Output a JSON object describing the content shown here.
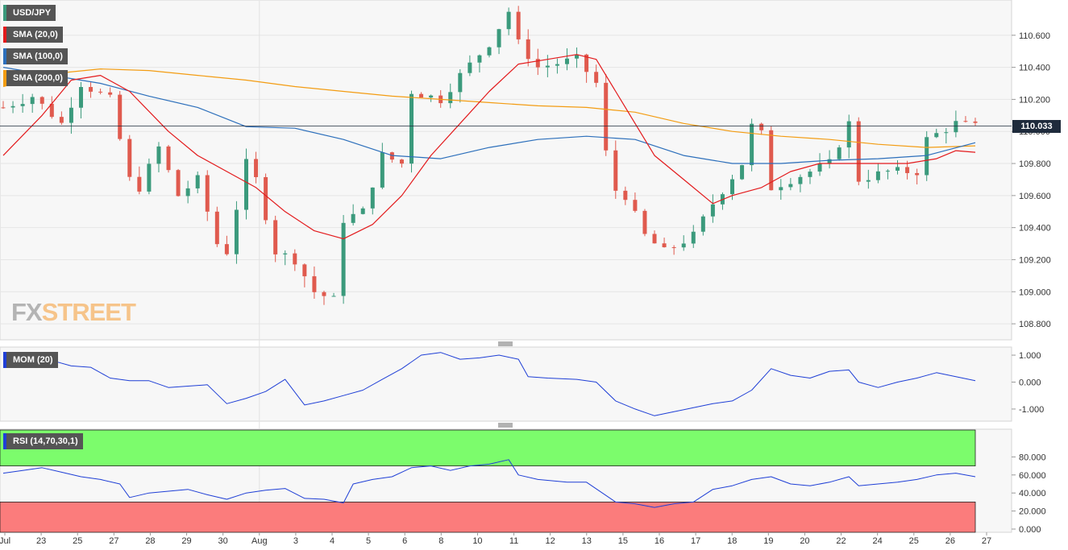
{
  "labels": {
    "symbol": "USD/JPY",
    "sma20": "SMA (20,0)",
    "sma100": "SMA (100,0)",
    "sma200": "SMA (200,0)",
    "mom": "MOM (20)",
    "rsi": "RSI (14,70,30,1)"
  },
  "watermark": {
    "fx": "FX",
    "street": "STREET"
  },
  "colors": {
    "up": "#3b9a7c",
    "down": "#e05a4e",
    "sma20": "#e31a1c",
    "sma100": "#2c6fbb",
    "sma200": "#f39c12",
    "mom": "#1f3fd6",
    "rsi": "#1f3fd6",
    "overbought": "#7cfc6c",
    "oversold": "#fb7c7c",
    "label_bg": "#555555"
  },
  "chart_data": {
    "type": "candlestick",
    "symbol": "USD/JPY",
    "timeframe": "hourly",
    "last_price": "110.033",
    "price_axis": {
      "ticks": [
        "108.800",
        "109.000",
        "109.200",
        "109.400",
        "109.600",
        "109.800",
        "110.000",
        "110.200",
        "110.400",
        "110.600"
      ],
      "range": [
        108.7,
        110.82
      ]
    },
    "date_ticks": [
      "Jul",
      "23",
      "25",
      "27",
      "28",
      "29",
      "30",
      "Aug",
      "3",
      "4",
      "5",
      "6",
      "8",
      "10",
      "11",
      "12",
      "13",
      "15",
      "16",
      "17",
      "18",
      "19",
      "20",
      "22",
      "24",
      "25",
      "26",
      "27"
    ],
    "price_path": [
      [
        0,
        110.15
      ],
      [
        6,
        110.22
      ],
      [
        12,
        110.05
      ],
      [
        16,
        110.3
      ],
      [
        22,
        110.2
      ],
      [
        26,
        109.7
      ],
      [
        28,
        109.65
      ],
      [
        32,
        109.9
      ],
      [
        36,
        109.6
      ],
      [
        40,
        109.7
      ],
      [
        44,
        109.3
      ],
      [
        46,
        109.25
      ],
      [
        50,
        109.8
      ],
      [
        52,
        109.7
      ],
      [
        56,
        109.25
      ],
      [
        60,
        109.2
      ],
      [
        64,
        109.0
      ],
      [
        68,
        108.95
      ],
      [
        70,
        109.45
      ],
      [
        74,
        109.5
      ],
      [
        78,
        109.85
      ],
      [
        82,
        109.8
      ],
      [
        84,
        110.25
      ],
      [
        90,
        110.2
      ],
      [
        94,
        110.35
      ],
      [
        100,
        110.55
      ],
      [
        104,
        110.75
      ],
      [
        106,
        110.55
      ],
      [
        110,
        110.4
      ],
      [
        118,
        110.45
      ],
      [
        122,
        110.3
      ],
      [
        125,
        109.65
      ],
      [
        128,
        109.6
      ],
      [
        132,
        109.35
      ],
      [
        136,
        109.25
      ],
      [
        142,
        109.35
      ],
      [
        146,
        109.55
      ],
      [
        152,
        109.8
      ],
      [
        155,
        110.15
      ],
      [
        158,
        109.65
      ],
      [
        162,
        109.7
      ],
      [
        170,
        109.8
      ],
      [
        174,
        110.05
      ],
      [
        176,
        109.7
      ],
      [
        182,
        109.75
      ],
      [
        188,
        109.75
      ],
      [
        190,
        109.95
      ],
      [
        196,
        110.05
      ],
      [
        200,
        110.03
      ]
    ],
    "sma20_path": [
      [
        0,
        109.85
      ],
      [
        8,
        110.1
      ],
      [
        14,
        110.32
      ],
      [
        20,
        110.35
      ],
      [
        26,
        110.25
      ],
      [
        34,
        110.0
      ],
      [
        40,
        109.85
      ],
      [
        46,
        109.75
      ],
      [
        52,
        109.65
      ],
      [
        58,
        109.5
      ],
      [
        64,
        109.38
      ],
      [
        70,
        109.33
      ],
      [
        76,
        109.42
      ],
      [
        82,
        109.6
      ],
      [
        88,
        109.85
      ],
      [
        94,
        110.05
      ],
      [
        100,
        110.25
      ],
      [
        106,
        110.42
      ],
      [
        112,
        110.45
      ],
      [
        118,
        110.48
      ],
      [
        122,
        110.45
      ],
      [
        126,
        110.25
      ],
      [
        130,
        110.05
      ],
      [
        134,
        109.85
      ],
      [
        140,
        109.7
      ],
      [
        146,
        109.55
      ],
      [
        150,
        109.6
      ],
      [
        156,
        109.65
      ],
      [
        162,
        109.75
      ],
      [
        168,
        109.8
      ],
      [
        174,
        109.8
      ],
      [
        180,
        109.8
      ],
      [
        186,
        109.8
      ],
      [
        192,
        109.83
      ],
      [
        196,
        109.88
      ],
      [
        200,
        109.87
      ]
    ],
    "sma100_path": [
      [
        0,
        110.4
      ],
      [
        10,
        110.35
      ],
      [
        20,
        110.3
      ],
      [
        30,
        110.22
      ],
      [
        40,
        110.15
      ],
      [
        50,
        110.03
      ],
      [
        60,
        110.02
      ],
      [
        70,
        109.95
      ],
      [
        80,
        109.85
      ],
      [
        90,
        109.83
      ],
      [
        100,
        109.9
      ],
      [
        110,
        109.95
      ],
      [
        120,
        109.97
      ],
      [
        130,
        109.95
      ],
      [
        140,
        109.85
      ],
      [
        150,
        109.8
      ],
      [
        160,
        109.8
      ],
      [
        170,
        109.82
      ],
      [
        180,
        109.83
      ],
      [
        190,
        109.85
      ],
      [
        200,
        109.93
      ]
    ],
    "sma200_path": [
      [
        0,
        110.28
      ],
      [
        10,
        110.36
      ],
      [
        20,
        110.39
      ],
      [
        30,
        110.38
      ],
      [
        40,
        110.35
      ],
      [
        50,
        110.32
      ],
      [
        60,
        110.28
      ],
      [
        70,
        110.25
      ],
      [
        80,
        110.22
      ],
      [
        90,
        110.2
      ],
      [
        100,
        110.18
      ],
      [
        110,
        110.16
      ],
      [
        120,
        110.15
      ],
      [
        130,
        110.12
      ],
      [
        140,
        110.05
      ],
      [
        150,
        110.0
      ],
      [
        160,
        109.97
      ],
      [
        170,
        109.95
      ],
      [
        180,
        109.92
      ],
      [
        190,
        109.9
      ],
      [
        200,
        109.91
      ]
    ],
    "mom": {
      "ticks": [
        "1.000",
        "0.000",
        "-1.000"
      ],
      "range": [
        -1.45,
        1.3
      ],
      "path": [
        [
          0,
          0.85
        ],
        [
          6,
          0.95
        ],
        [
          10,
          0.8
        ],
        [
          14,
          0.6
        ],
        [
          18,
          0.55
        ],
        [
          22,
          0.15
        ],
        [
          26,
          0.05
        ],
        [
          30,
          0.05
        ],
        [
          34,
          -0.2
        ],
        [
          38,
          -0.15
        ],
        [
          42,
          -0.1
        ],
        [
          46,
          -0.8
        ],
        [
          50,
          -0.6
        ],
        [
          54,
          -0.35
        ],
        [
          58,
          0.1
        ],
        [
          62,
          -0.85
        ],
        [
          66,
          -0.7
        ],
        [
          70,
          -0.5
        ],
        [
          74,
          -0.3
        ],
        [
          78,
          0.1
        ],
        [
          82,
          0.5
        ],
        [
          86,
          1.0
        ],
        [
          90,
          1.1
        ],
        [
          94,
          0.85
        ],
        [
          98,
          0.9
        ],
        [
          102,
          1.0
        ],
        [
          106,
          0.85
        ],
        [
          108,
          0.2
        ],
        [
          112,
          0.15
        ],
        [
          118,
          0.1
        ],
        [
          122,
          0.0
        ],
        [
          126,
          -0.7
        ],
        [
          130,
          -1.0
        ],
        [
          134,
          -1.25
        ],
        [
          138,
          -1.1
        ],
        [
          142,
          -0.95
        ],
        [
          146,
          -0.8
        ],
        [
          150,
          -0.7
        ],
        [
          154,
          -0.3
        ],
        [
          158,
          0.5
        ],
        [
          162,
          0.25
        ],
        [
          166,
          0.15
        ],
        [
          170,
          0.4
        ],
        [
          174,
          0.45
        ],
        [
          176,
          0.0
        ],
        [
          180,
          -0.2
        ],
        [
          184,
          0.0
        ],
        [
          188,
          0.15
        ],
        [
          192,
          0.35
        ],
        [
          196,
          0.2
        ],
        [
          200,
          0.05
        ]
      ]
    },
    "rsi": {
      "ticks": [
        "80.000",
        "60.000",
        "40.000",
        "20.000",
        "0.000"
      ],
      "range": [
        0,
        100
      ],
      "overbought": 70,
      "oversold": 30,
      "path": [
        [
          0,
          62
        ],
        [
          4,
          65
        ],
        [
          8,
          68
        ],
        [
          12,
          63
        ],
        [
          16,
          58
        ],
        [
          20,
          55
        ],
        [
          24,
          50
        ],
        [
          26,
          35
        ],
        [
          30,
          40
        ],
        [
          34,
          42
        ],
        [
          38,
          44
        ],
        [
          42,
          38
        ],
        [
          46,
          33
        ],
        [
          50,
          40
        ],
        [
          54,
          43
        ],
        [
          58,
          45
        ],
        [
          62,
          34
        ],
        [
          66,
          33
        ],
        [
          70,
          29
        ],
        [
          72,
          50
        ],
        [
          76,
          55
        ],
        [
          80,
          58
        ],
        [
          84,
          68
        ],
        [
          88,
          70
        ],
        [
          92,
          65
        ],
        [
          96,
          70
        ],
        [
          100,
          72
        ],
        [
          104,
          77
        ],
        [
          106,
          60
        ],
        [
          110,
          55
        ],
        [
          116,
          52
        ],
        [
          120,
          52
        ],
        [
          126,
          30
        ],
        [
          130,
          28
        ],
        [
          134,
          24
        ],
        [
          138,
          28
        ],
        [
          142,
          30
        ],
        [
          146,
          44
        ],
        [
          150,
          48
        ],
        [
          154,
          55
        ],
        [
          158,
          58
        ],
        [
          162,
          50
        ],
        [
          166,
          48
        ],
        [
          170,
          52
        ],
        [
          174,
          58
        ],
        [
          176,
          48
        ],
        [
          180,
          50
        ],
        [
          184,
          52
        ],
        [
          188,
          55
        ],
        [
          192,
          60
        ],
        [
          196,
          62
        ],
        [
          200,
          58
        ]
      ]
    }
  }
}
